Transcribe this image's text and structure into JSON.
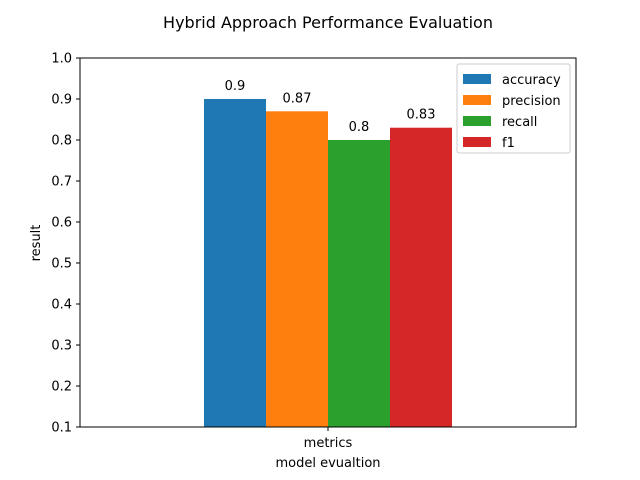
{
  "chart_data": {
    "type": "bar",
    "title": "Hybrid Approach Performance Evaluation",
    "xlabel": "model evualtion",
    "ylabel": "result",
    "categories": [
      "metrics"
    ],
    "series": [
      {
        "name": "accuracy",
        "values": [
          0.9
        ],
        "label": "0.9",
        "color": "#1f77b4"
      },
      {
        "name": "precision",
        "values": [
          0.87
        ],
        "label": "0.87",
        "color": "#ff7f0e"
      },
      {
        "name": "recall",
        "values": [
          0.8
        ],
        "label": "0.8",
        "color": "#2ca02c"
      },
      {
        "name": "f1",
        "values": [
          0.83
        ],
        "label": "0.83",
        "color": "#d62728"
      }
    ],
    "ylim": [
      0.1,
      1.0
    ],
    "yticks": [
      0.1,
      0.2,
      0.3,
      0.4,
      0.5,
      0.6,
      0.7,
      0.8,
      0.9,
      1.0
    ],
    "ytick_labels": [
      "0.1",
      "0.2",
      "0.3",
      "0.4",
      "0.5",
      "0.6",
      "0.7",
      "0.8",
      "0.9",
      "1.0"
    ],
    "grid": false,
    "legend_position": "top-right"
  }
}
